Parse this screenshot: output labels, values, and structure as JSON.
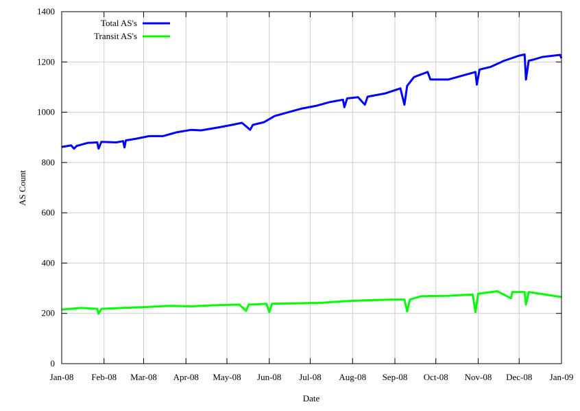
{
  "chart_data": {
    "type": "line",
    "title": "",
    "xlabel": "Date",
    "ylabel": "AS Count",
    "xlim": [
      "2008-01-01",
      "2009-01-01"
    ],
    "ylim": [
      0,
      1400
    ],
    "grid": true,
    "legend": "top-left",
    "x_tick_labels": [
      "Jan-08",
      "Feb-08",
      "Mar-08",
      "Apr-08",
      "May-08",
      "Jun-08",
      "Jul-08",
      "Aug-08",
      "Sep-08",
      "Oct-08",
      "Nov-08",
      "Dec-08",
      "Jan-09"
    ],
    "x_tick_dates": [
      "2008-01-01",
      "2008-02-01",
      "2008-03-01",
      "2008-04-01",
      "2008-05-01",
      "2008-06-01",
      "2008-07-01",
      "2008-08-01",
      "2008-09-01",
      "2008-10-01",
      "2008-11-01",
      "2008-12-01",
      "2009-01-01"
    ],
    "y_ticks": [
      0,
      200,
      400,
      600,
      800,
      1000,
      1200,
      1400
    ],
    "series": [
      {
        "name": "Total AS's",
        "color": "#0000ff",
        "points": [
          [
            "2008-01-01",
            862
          ],
          [
            "2008-01-08",
            868
          ],
          [
            "2008-01-10",
            855
          ],
          [
            "2008-01-12",
            866
          ],
          [
            "2008-01-20",
            878
          ],
          [
            "2008-01-27",
            880
          ],
          [
            "2008-01-28",
            855
          ],
          [
            "2008-01-30",
            882
          ],
          [
            "2008-02-10",
            880
          ],
          [
            "2008-02-15",
            885
          ],
          [
            "2008-02-16",
            860
          ],
          [
            "2008-02-17",
            888
          ],
          [
            "2008-02-25",
            895
          ],
          [
            "2008-03-05",
            905
          ],
          [
            "2008-03-15",
            905
          ],
          [
            "2008-03-25",
            920
          ],
          [
            "2008-04-05",
            930
          ],
          [
            "2008-04-12",
            928
          ],
          [
            "2008-04-25",
            940
          ],
          [
            "2008-05-05",
            950
          ],
          [
            "2008-05-12",
            958
          ],
          [
            "2008-05-18",
            930
          ],
          [
            "2008-05-20",
            950
          ],
          [
            "2008-05-28",
            960
          ],
          [
            "2008-06-05",
            985
          ],
          [
            "2008-06-15",
            1000
          ],
          [
            "2008-06-25",
            1015
          ],
          [
            "2008-07-05",
            1025
          ],
          [
            "2008-07-15",
            1040
          ],
          [
            "2008-07-25",
            1050
          ],
          [
            "2008-07-26",
            1020
          ],
          [
            "2008-07-28",
            1055
          ],
          [
            "2008-08-05",
            1060
          ],
          [
            "2008-08-10",
            1030
          ],
          [
            "2008-08-12",
            1062
          ],
          [
            "2008-08-25",
            1075
          ],
          [
            "2008-09-05",
            1095
          ],
          [
            "2008-09-08",
            1030
          ],
          [
            "2008-09-10",
            1105
          ],
          [
            "2008-09-15",
            1140
          ],
          [
            "2008-09-25",
            1160
          ],
          [
            "2008-09-27",
            1130
          ],
          [
            "2008-10-10",
            1130
          ],
          [
            "2008-10-20",
            1145
          ],
          [
            "2008-10-30",
            1160
          ],
          [
            "2008-10-31",
            1110
          ],
          [
            "2008-11-02",
            1170
          ],
          [
            "2008-11-10",
            1180
          ],
          [
            "2008-11-20",
            1205
          ],
          [
            "2008-12-01",
            1225
          ],
          [
            "2008-12-05",
            1230
          ],
          [
            "2008-12-06",
            1130
          ],
          [
            "2008-12-08",
            1205
          ],
          [
            "2008-12-12",
            1210
          ],
          [
            "2008-12-18",
            1220
          ],
          [
            "2008-12-31",
            1228
          ],
          [
            "2009-01-01",
            1215
          ]
        ]
      },
      {
        "name": "Transit AS's",
        "color": "#00ff00",
        "points": [
          [
            "2008-01-01",
            215
          ],
          [
            "2008-01-15",
            222
          ],
          [
            "2008-01-27",
            218
          ],
          [
            "2008-01-28",
            198
          ],
          [
            "2008-01-30",
            218
          ],
          [
            "2008-02-15",
            222
          ],
          [
            "2008-03-01",
            225
          ],
          [
            "2008-03-20",
            230
          ],
          [
            "2008-04-05",
            228
          ],
          [
            "2008-04-20",
            232
          ],
          [
            "2008-05-10",
            235
          ],
          [
            "2008-05-15",
            210
          ],
          [
            "2008-05-17",
            235
          ],
          [
            "2008-05-30",
            238
          ],
          [
            "2008-06-01",
            205
          ],
          [
            "2008-06-03",
            238
          ],
          [
            "2008-06-20",
            240
          ],
          [
            "2008-07-10",
            242
          ],
          [
            "2008-07-25",
            248
          ],
          [
            "2008-08-10",
            252
          ],
          [
            "2008-08-30",
            255
          ],
          [
            "2008-09-08",
            255
          ],
          [
            "2008-09-10",
            208
          ],
          [
            "2008-09-12",
            255
          ],
          [
            "2008-09-20",
            268
          ],
          [
            "2008-10-10",
            270
          ],
          [
            "2008-10-28",
            275
          ],
          [
            "2008-10-30",
            205
          ],
          [
            "2008-11-01",
            278
          ],
          [
            "2008-11-15",
            288
          ],
          [
            "2008-11-25",
            260
          ],
          [
            "2008-11-26",
            285
          ],
          [
            "2008-12-05",
            285
          ],
          [
            "2008-12-06",
            235
          ],
          [
            "2008-12-08",
            285
          ],
          [
            "2009-01-01",
            265
          ]
        ]
      }
    ]
  }
}
